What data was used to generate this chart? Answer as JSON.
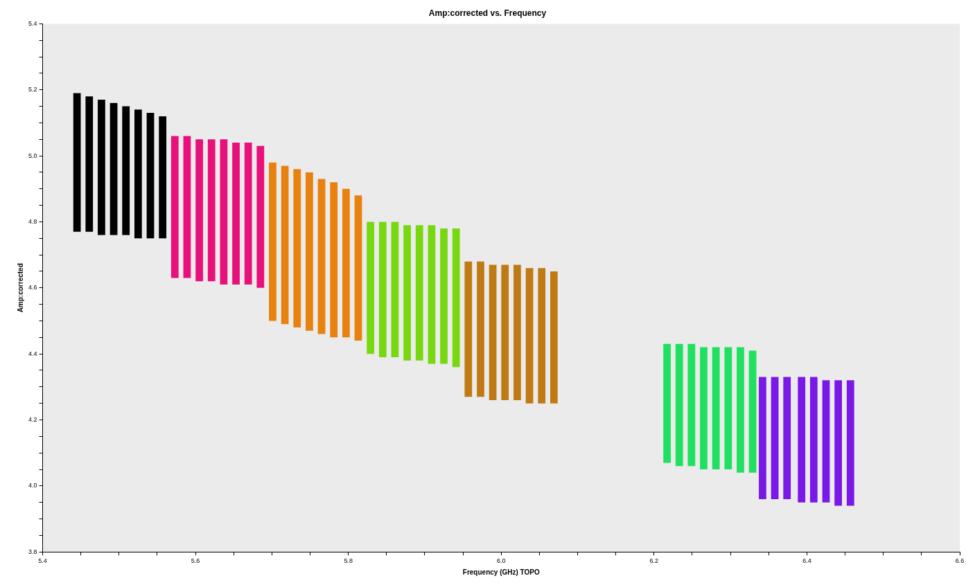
{
  "chart_data": {
    "type": "bar",
    "title": "Amp:corrected vs. Frequency",
    "xlabel": "Frequency (GHz) TOPO",
    "ylabel": "Amp:corrected",
    "xlim": [
      5.4,
      6.6
    ],
    "xticks": [
      5.4,
      {
        "value": 5.45,
        "label": null
      },
      {
        "value": 5.5,
        "label": null
      },
      {
        "value": 5.55,
        "label": null
      },
      5.6,
      {
        "value": 5.65,
        "label": null
      },
      {
        "value": 5.7,
        "label": null
      },
      {
        "value": 5.75,
        "label": null
      },
      5.8,
      {
        "value": 5.85,
        "label": null
      },
      {
        "value": 5.9,
        "label": null
      },
      {
        "value": 5.95,
        "label": null
      },
      {
        "value": 6,
        "label": "6.0"
      },
      {
        "value": 6.05,
        "label": null
      },
      {
        "value": 6.1,
        "label": null
      },
      {
        "value": 6.15,
        "label": null
      },
      6.2,
      {
        "value": 6.25,
        "label": null
      },
      {
        "value": 6.3,
        "label": null
      },
      {
        "value": 6.35,
        "label": null
      },
      6.4,
      {
        "value": 6.45,
        "label": null
      },
      {
        "value": 6.5,
        "label": null
      },
      {
        "value": 6.55,
        "label": null
      },
      6.6
    ],
    "ylim": [
      3.8,
      5.4
    ],
    "yticks": [
      3.8,
      {
        "value": 3.85,
        "label": null
      },
      {
        "value": 3.9,
        "label": null
      },
      {
        "value": 3.95,
        "label": null
      },
      {
        "value": 4,
        "label": "4.0"
      },
      {
        "value": 4.05,
        "label": null
      },
      {
        "value": 4.1,
        "label": null
      },
      {
        "value": 4.15,
        "label": null
      },
      4.2,
      {
        "value": 4.25,
        "label": null
      },
      {
        "value": 4.3,
        "label": null
      },
      {
        "value": 4.35,
        "label": null
      },
      4.4,
      {
        "value": 4.45,
        "label": null
      },
      {
        "value": 4.5,
        "label": null
      },
      {
        "value": 4.55,
        "label": null
      },
      4.6,
      {
        "value": 4.65,
        "label": null
      },
      {
        "value": 4.7,
        "label": null
      },
      {
        "value": 4.75,
        "label": null
      },
      4.8,
      {
        "value": 4.85,
        "label": null
      },
      {
        "value": 4.9,
        "label": null
      },
      {
        "value": 4.95,
        "label": null
      },
      {
        "value": 5,
        "label": "5.0"
      },
      {
        "value": 5.05,
        "label": null
      },
      {
        "value": 5.1,
        "label": null
      },
      {
        "value": 5.15,
        "label": null
      },
      5.2,
      {
        "value": 5.25,
        "label": null
      },
      {
        "value": 5.3,
        "label": null
      },
      {
        "value": 5.35,
        "label": null
      },
      5.4
    ],
    "grid": false,
    "legend": false,
    "series": [
      {
        "color": "#000000",
        "x": [
          5.445,
          5.461,
          5.477,
          5.493,
          5.509,
          5.525,
          5.541,
          5.557
        ],
        "base": [
          4.77,
          4.77,
          4.76,
          4.76,
          4.76,
          4.75,
          4.75,
          4.75
        ],
        "values": [
          0.42,
          0.41,
          0.41,
          0.4,
          0.39,
          0.39,
          0.38,
          0.37
        ]
      },
      {
        "color": "#e8107a",
        "x": [
          5.573,
          5.589,
          5.605,
          5.621,
          5.637,
          5.653,
          5.669,
          5.685
        ],
        "base": [
          4.63,
          4.63,
          4.62,
          4.62,
          4.61,
          4.61,
          4.61,
          4.6
        ],
        "values": [
          0.43,
          0.43,
          0.43,
          0.43,
          0.44,
          0.43,
          0.43,
          0.43
        ]
      },
      {
        "color": "#e8820f",
        "x": [
          5.701,
          5.717,
          5.733,
          5.749,
          5.765,
          5.781,
          5.797,
          5.813
        ],
        "base": [
          4.5,
          4.49,
          4.48,
          4.47,
          4.46,
          4.45,
          4.45,
          4.44
        ],
        "values": [
          0.48,
          0.48,
          0.48,
          0.48,
          0.47,
          0.47,
          0.45,
          0.44
        ]
      },
      {
        "color": "#78d810",
        "x": [
          5.829,
          5.845,
          5.861,
          5.877,
          5.893,
          5.909,
          5.925,
          5.941
        ],
        "base": [
          4.4,
          4.39,
          4.39,
          4.38,
          4.38,
          4.37,
          4.37,
          4.36
        ],
        "values": [
          0.4,
          0.41,
          0.41,
          0.41,
          0.41,
          0.42,
          0.41,
          0.42
        ]
      },
      {
        "color": "#c07a14",
        "x": [
          5.957,
          5.973,
          5.989,
          6.005,
          6.021,
          6.037,
          6.053,
          6.069
        ],
        "base": [
          4.27,
          4.27,
          4.26,
          4.26,
          4.26,
          4.25,
          4.25,
          4.25
        ],
        "values": [
          0.41,
          0.41,
          0.41,
          0.41,
          0.41,
          0.41,
          0.41,
          0.4
        ]
      },
      {
        "color": "#20e060",
        "x": [
          6.217,
          6.233,
          6.249,
          6.265,
          6.281,
          6.297,
          6.313,
          6.329
        ],
        "base": [
          4.07,
          4.06,
          4.06,
          4.05,
          4.05,
          4.05,
          4.04,
          4.04
        ],
        "values": [
          0.36,
          0.37,
          0.37,
          0.37,
          0.37,
          0.37,
          0.38,
          0.37
        ]
      },
      {
        "color": "#7a18e8",
        "x": [
          6.342,
          6.358,
          6.374,
          6.393,
          6.409,
          6.425,
          6.441,
          6.457
        ],
        "base": [
          3.96,
          3.96,
          3.96,
          3.95,
          3.95,
          3.95,
          3.94,
          3.94
        ],
        "values": [
          0.37,
          0.37,
          0.37,
          0.38,
          0.38,
          0.37,
          0.38,
          0.38
        ]
      }
    ]
  }
}
